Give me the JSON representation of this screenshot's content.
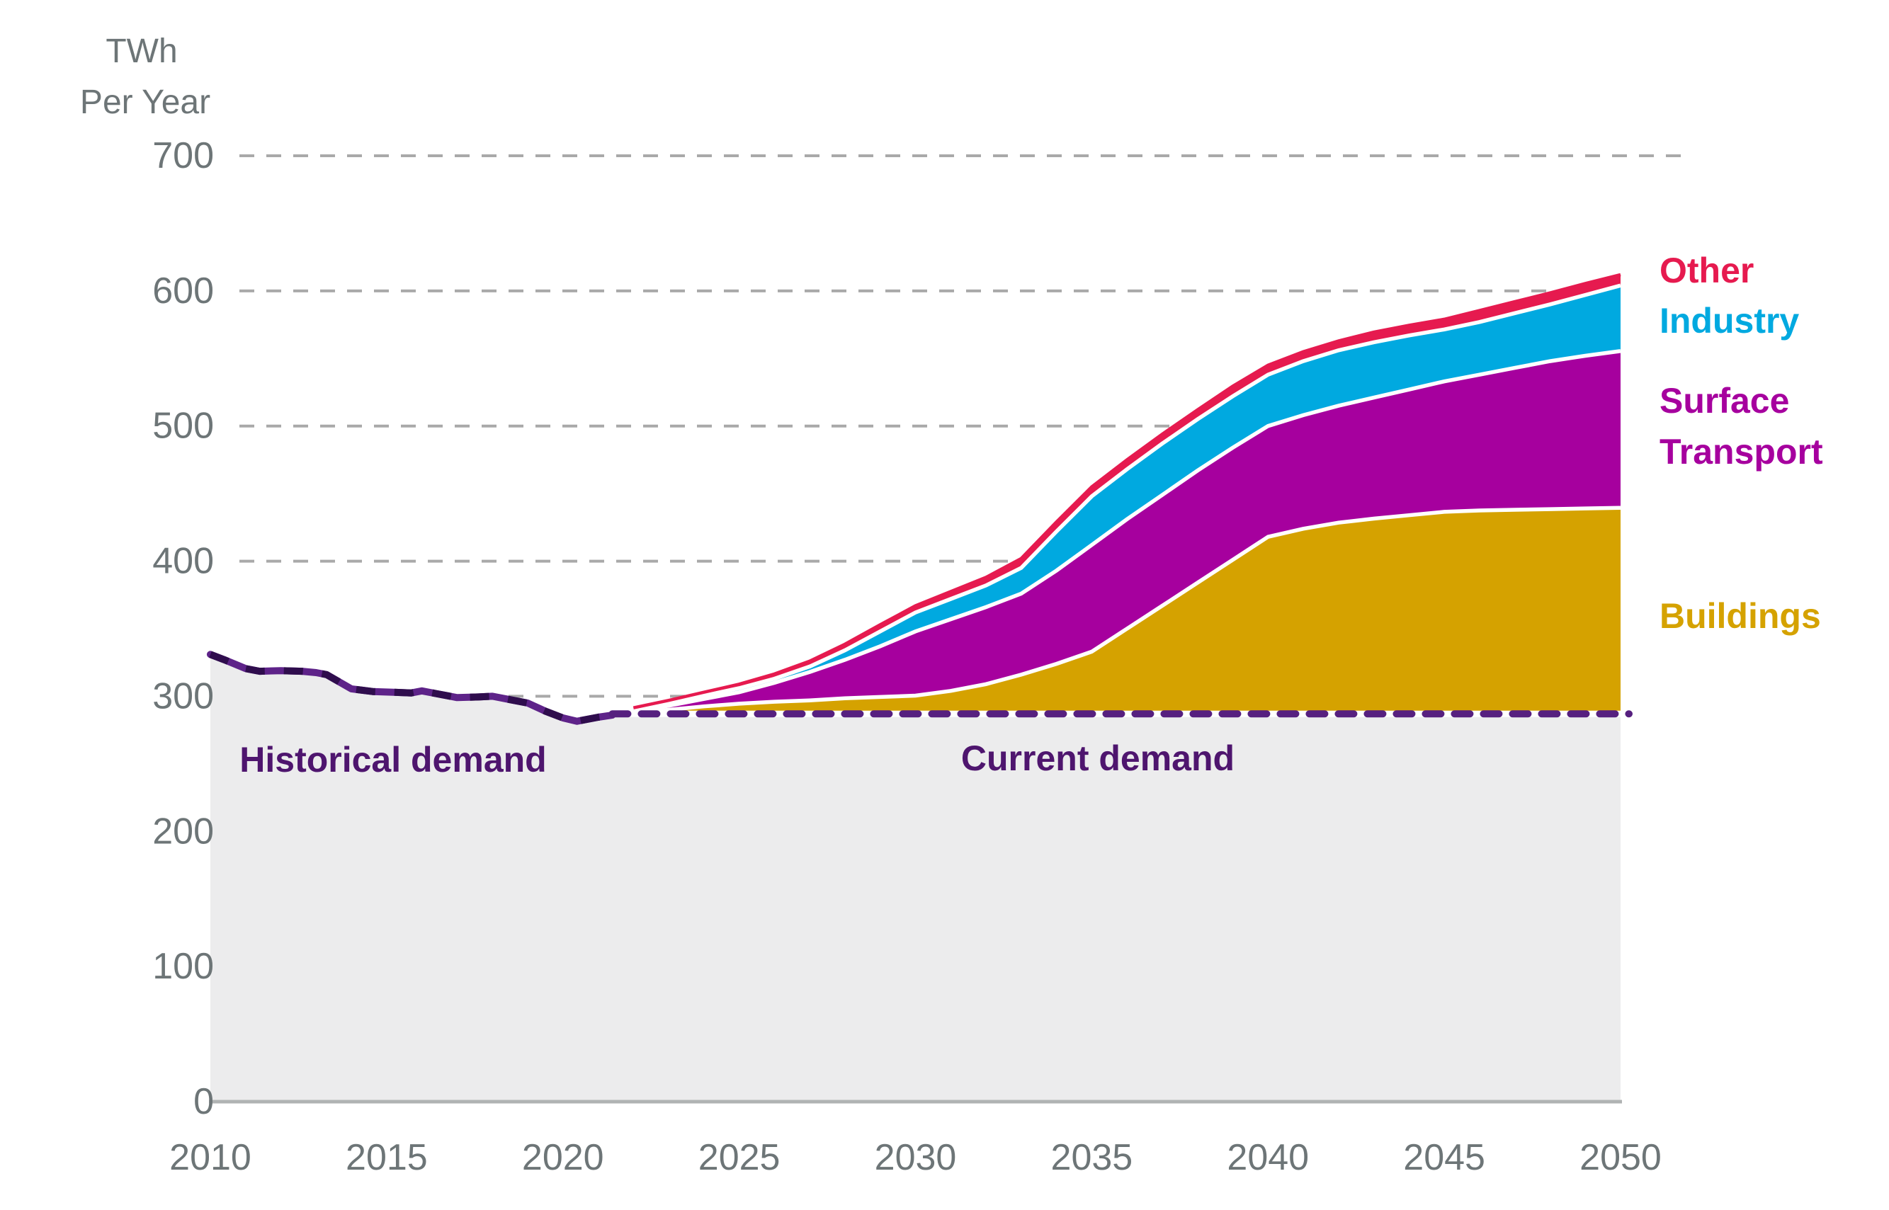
{
  "page": {
    "background": "#ffffff"
  },
  "colors": {
    "other": "#e61a4f",
    "industry": "#00a9e0",
    "surface_transport": "#a6009e",
    "buildings": "#d5a200",
    "gray_area": "#ececed",
    "gridline": "#a9a9a9",
    "axis_line": "#b0b3b3",
    "axis_text": "#6d7577",
    "historical_line": "#5e2389",
    "historical_dash": "#2f0d4d",
    "current_dash": "#56207f",
    "annotation_text": "#4e156e",
    "separator": "#ffffff"
  },
  "ui": {
    "legend_lines": {
      "other": "Other",
      "industry": "Industry",
      "surface": "Surface",
      "transport": "Transport",
      "buildings": "Buildings"
    }
  },
  "chart_data": {
    "type": "area",
    "subtype": "stacked-area-projection",
    "unit_label_lines": [
      "TWh",
      "Per Year"
    ],
    "y_axis": {
      "ticks": [
        0,
        100,
        200,
        300,
        400,
        500,
        600,
        700
      ],
      "min": 0,
      "max": 700,
      "gridlines": "dashed"
    },
    "x_axis": {
      "ticks": [
        2010,
        2015,
        2020,
        2025,
        2030,
        2035,
        2040,
        2045,
        2050
      ],
      "range": [
        2010,
        2050
      ]
    },
    "annotations": {
      "historical": "Historical demand",
      "current": "Current demand"
    },
    "legend": [
      {
        "label": "Other",
        "color": "#e61a4f"
      },
      {
        "label": "Industry",
        "color": "#00a9e0"
      },
      {
        "label": "Surface Transport",
        "color": "#a6009e"
      },
      {
        "label": "Buildings",
        "color": "#d5a200"
      }
    ],
    "historical_series": {
      "name": "Historical demand",
      "points": [
        [
          2010,
          331
        ],
        [
          2010.4,
          327
        ],
        [
          2011,
          320.5
        ],
        [
          2011.4,
          318.5
        ],
        [
          2012,
          319
        ],
        [
          2012.6,
          318.5
        ],
        [
          2013,
          317.5
        ],
        [
          2013.3,
          316
        ],
        [
          2014,
          305.5
        ],
        [
          2014.6,
          303.5
        ],
        [
          2015.2,
          303
        ],
        [
          2015.7,
          302.5
        ],
        [
          2016,
          304
        ],
        [
          2016.4,
          302
        ],
        [
          2017,
          299
        ],
        [
          2017.6,
          299.5
        ],
        [
          2018,
          300
        ],
        [
          2018.5,
          297.5
        ],
        [
          2019,
          295
        ],
        [
          2019.5,
          289
        ],
        [
          2020,
          284
        ],
        [
          2020.4,
          281.5
        ],
        [
          2021,
          284.5
        ],
        [
          2021.4,
          286
        ]
      ]
    },
    "current_demand": {
      "name": "Current demand",
      "level_twh": 287,
      "from_year": 2021.4,
      "to_year": 2050
    },
    "projection": {
      "baseline_twh": 287,
      "years": [
        2022,
        2023,
        2024,
        2025,
        2026,
        2027,
        2028,
        2029,
        2030,
        2031,
        2032,
        2033,
        2034,
        2035,
        2036,
        2037,
        2038,
        2039,
        2040,
        2041,
        2042,
        2043,
        2044,
        2045,
        2046,
        2047,
        2048,
        2049,
        2050
      ],
      "cumulative_tops": {
        "buildings": [
          288,
          290,
          292.5,
          294.5,
          296,
          297,
          298.5,
          299.5,
          300.5,
          304,
          309,
          316,
          324,
          333,
          350,
          367,
          384,
          401,
          418,
          424,
          428.5,
          431.5,
          434,
          436.5,
          437.5,
          438,
          438.5,
          439,
          439.5
        ],
        "surface_transport": [
          289,
          293,
          298,
          303,
          310,
          318,
          327,
          337,
          348,
          357,
          366,
          376,
          393,
          412,
          431,
          449,
          467,
          484,
          500,
          508,
          515,
          521,
          527,
          533,
          538,
          543,
          548,
          552,
          555.5
        ],
        "industry": [
          290,
          295,
          300.5,
          306,
          313,
          322,
          334,
          348,
          362,
          372,
          382,
          395,
          422,
          448,
          468,
          487,
          505,
          522,
          538,
          548,
          556,
          562,
          567,
          571.5,
          577,
          583.5,
          590,
          597,
          604
        ],
        "other": [
          291.5,
          297,
          303,
          309,
          316.5,
          326,
          338.5,
          353,
          367,
          377.5,
          388,
          402,
          429,
          455,
          475,
          494,
          512,
          529.5,
          545,
          555,
          563,
          569.5,
          574.5,
          579,
          585.5,
          592,
          598.5,
          605.5,
          612
        ]
      },
      "band_values_2050": {
        "buildings": 152.5,
        "surface_transport": 116,
        "industry": 48.5,
        "other": 8,
        "total_2050": 612
      }
    }
  }
}
